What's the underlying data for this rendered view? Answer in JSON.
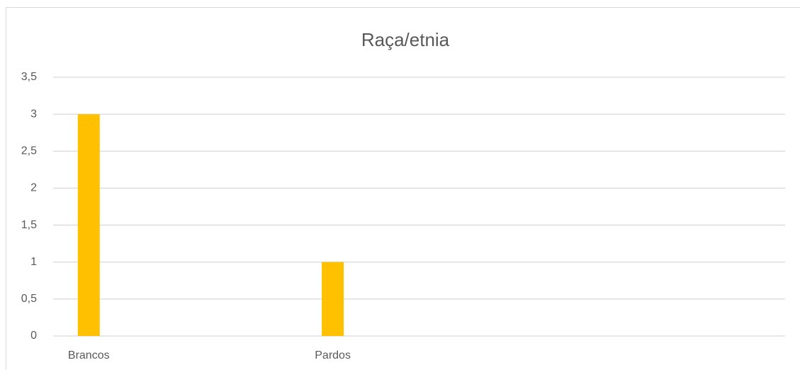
{
  "chart_data": {
    "type": "bar",
    "title": "Raça/etnia",
    "categories": [
      "Brancos",
      "Pardos",
      null
    ],
    "values": [
      3,
      1,
      null
    ],
    "color": "#ffc000",
    "ylim": [
      0,
      3.5
    ],
    "yticks": [
      0,
      {
        "value": 0.5,
        "label": "0,5"
      },
      1,
      {
        "value": 1.5,
        "label": "1,5"
      },
      2,
      {
        "value": 2.5,
        "label": "2,5"
      },
      3,
      {
        "value": 3.5,
        "label": "3,5"
      }
    ],
    "grid": true
  }
}
